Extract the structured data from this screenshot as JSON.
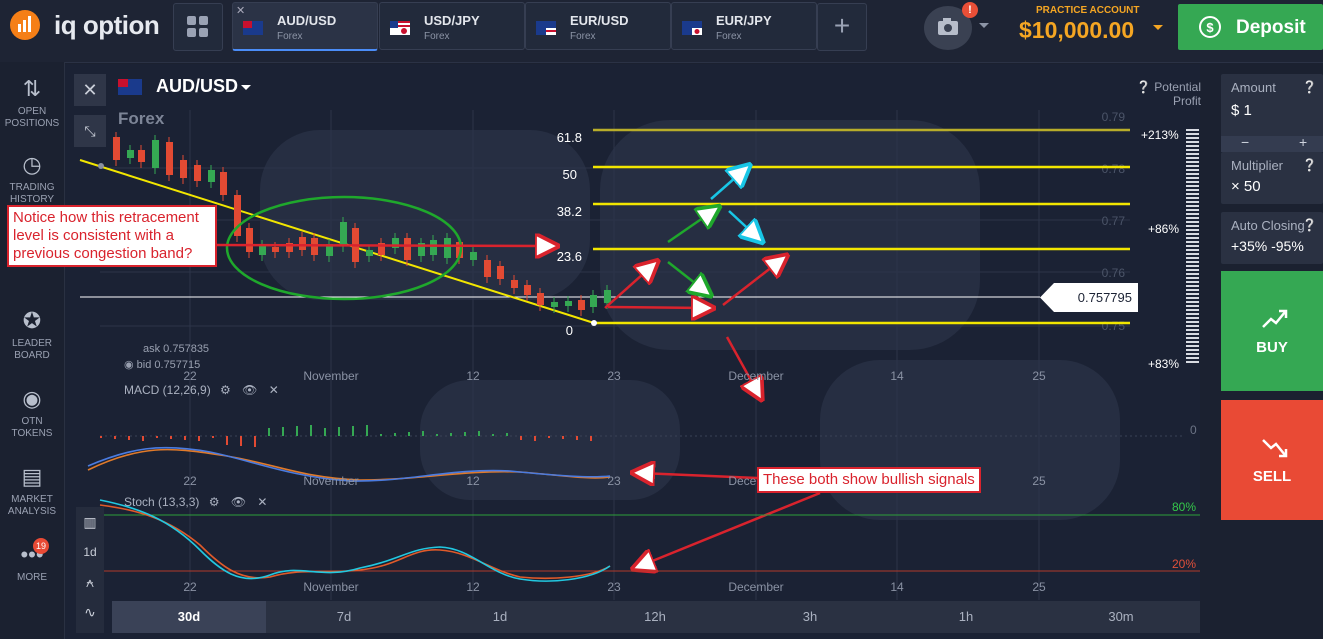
{
  "brand": {
    "name": "iq option"
  },
  "tabs": [
    {
      "pair": "AUD/USD",
      "sub": "Forex",
      "active": true
    },
    {
      "pair": "USD/JPY",
      "sub": "Forex",
      "active": false
    },
    {
      "pair": "EUR/USD",
      "sub": "Forex",
      "active": false
    },
    {
      "pair": "EUR/JPY",
      "sub": "Forex",
      "active": false
    }
  ],
  "camera_badge": "!",
  "account": {
    "type": "PRACTICE ACCOUNT",
    "balance": "$10,000.00"
  },
  "deposit_label": "Deposit",
  "left_nav": [
    {
      "label": "OPEN POSITIONS",
      "icon": "arrows-updown-icon"
    },
    {
      "label": "TRADING HISTORY",
      "icon": "history-icon"
    },
    {
      "label": "LEADER BOARD",
      "icon": "medal-icon"
    },
    {
      "label": "OTN TOKENS",
      "icon": "token-icon"
    },
    {
      "label": "MARKET ANALYSIS",
      "icon": "news-icon"
    },
    {
      "label": "MORE",
      "icon": "more-icon",
      "badge": "19"
    }
  ],
  "asset": {
    "name": "AUD/USD",
    "category": "Forex"
  },
  "quote": {
    "ask": "ask 0.757835",
    "bid": "bid 0.757715"
  },
  "current_price": "0.757795",
  "potential_profit": "Potential Profit",
  "profit_levels": [
    "+213%",
    "+86%",
    "+83%"
  ],
  "price_axis": [
    "0.79",
    "0.78",
    "0.77",
    "0.76",
    "0.75"
  ],
  "fib_levels": [
    "61.8",
    "50",
    "38.2",
    "23.6",
    "0"
  ],
  "date_axis": [
    "22",
    "November",
    "12",
    "23",
    "December",
    "14",
    "25"
  ],
  "indicators": {
    "macd": "MACD (12,26,9)",
    "macd_zero": "0",
    "stoch": "Stoch (13,3,3)",
    "stoch_high": "80%",
    "stoch_low": "20%"
  },
  "chart_tools": [
    "1d"
  ],
  "annotations": {
    "retracement": "Notice how this retracement level is consistent with a previous congestion band?",
    "bullish": "These both show bullish signals"
  },
  "right_panel": {
    "amount_label": "Amount",
    "amount_value": "$  1",
    "multiplier_label": "Multiplier",
    "multiplier_value": "× 50",
    "auto_closing_label": "Auto Closing",
    "auto_closing_value": "+35%  -95%",
    "buy_label": "BUY",
    "sell_label": "SELL"
  },
  "timeframes": [
    {
      "label": "30d",
      "active": true
    },
    {
      "label": "7d"
    },
    {
      "label": "1d"
    },
    {
      "label": "12h"
    },
    {
      "label": "3h"
    },
    {
      "label": "1h"
    },
    {
      "label": "30m"
    }
  ],
  "colors": {
    "accent_green": "#35a853",
    "accent_red": "#e94a35",
    "fib_yellow": "#f2e600",
    "balance_orange": "#f5a623"
  }
}
